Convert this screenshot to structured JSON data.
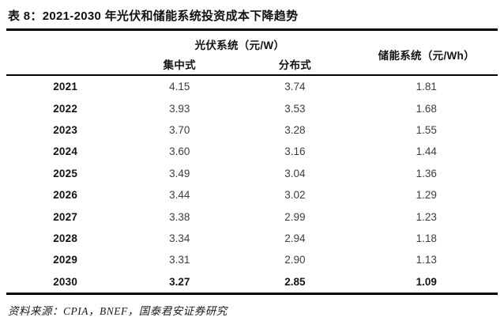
{
  "title": "表 8：2021-2030 年光伏和储能系统投资成本下降趋势",
  "table": {
    "group_headers": {
      "pv": "光伏系统（元/W）",
      "storage": "储能系统（元/Wh）"
    },
    "sub_headers": {
      "centralized": "集中式",
      "distributed": "分布式"
    },
    "rows": [
      [
        "2021",
        "4.15",
        "3.74",
        "1.81"
      ],
      [
        "2022",
        "3.93",
        "3.53",
        "1.68"
      ],
      [
        "2023",
        "3.70",
        "3.28",
        "1.55"
      ],
      [
        "2024",
        "3.60",
        "3.16",
        "1.44"
      ],
      [
        "2025",
        "3.49",
        "3.04",
        "1.36"
      ],
      [
        "2026",
        "3.44",
        "3.02",
        "1.29"
      ],
      [
        "2027",
        "3.38",
        "2.99",
        "1.23"
      ],
      [
        "2028",
        "3.34",
        "2.94",
        "1.18"
      ],
      [
        "2029",
        "3.31",
        "2.90",
        "1.13"
      ],
      [
        "2030",
        "3.27",
        "2.85",
        "1.09"
      ]
    ]
  },
  "footer": {
    "source": "资料来源：CPIA，BNEF，国泰君安证券研究"
  },
  "colors": {
    "background": "#ffffff",
    "heading_text": "#141414",
    "value_text": "#3d3d3d",
    "rule": "#000000"
  },
  "chart_data": {
    "type": "table",
    "title": "表 8：2021-2030 年光伏和储能系统投资成本下降趋势",
    "categories": [
      "2021",
      "2022",
      "2023",
      "2024",
      "2025",
      "2026",
      "2027",
      "2028",
      "2029",
      "2030"
    ],
    "series": [
      {
        "name": "光伏系统-集中式（元/W）",
        "values": [
          4.15,
          3.93,
          3.7,
          3.6,
          3.49,
          3.44,
          3.38,
          3.34,
          3.31,
          3.27
        ]
      },
      {
        "name": "光伏系统-分布式（元/W）",
        "values": [
          3.74,
          3.53,
          3.28,
          3.16,
          3.04,
          3.02,
          2.99,
          2.94,
          2.9,
          2.85
        ]
      },
      {
        "name": "储能系统（元/Wh）",
        "values": [
          1.81,
          1.68,
          1.55,
          1.44,
          1.36,
          1.29,
          1.23,
          1.18,
          1.13,
          1.09
        ]
      }
    ]
  }
}
